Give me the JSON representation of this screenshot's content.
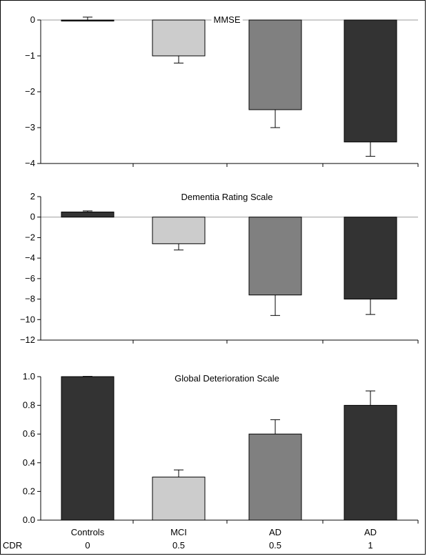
{
  "chart_data": [
    {
      "type": "bar",
      "title": "MMSE",
      "categories": [
        "Controls",
        "MCI",
        "AD",
        "AD"
      ],
      "values": [
        0,
        -1.0,
        -2.5,
        -3.4
      ],
      "error": [
        0.08,
        0.2,
        0.5,
        0.4
      ],
      "ylim": [
        -4,
        0
      ],
      "yticks": [
        0,
        -1,
        -2,
        -3,
        -4
      ],
      "ytick_labels": [
        "0",
        "−1",
        "−2",
        "−3",
        "−4"
      ],
      "baseline_line": true,
      "colors": [
        "#333333",
        "#cccccc",
        "#808080",
        "#333333"
      ]
    },
    {
      "type": "bar",
      "title": "Dementia Rating Scale",
      "categories": [
        "Controls",
        "MCI",
        "AD",
        "AD"
      ],
      "values": [
        0.5,
        -2.6,
        -7.6,
        -8.0
      ],
      "error": [
        0.1,
        0.6,
        2.0,
        1.5
      ],
      "ylim": [
        -12,
        2
      ],
      "yticks": [
        2,
        0,
        -2,
        -4,
        -6,
        -8,
        -10,
        -12
      ],
      "ytick_labels": [
        "2",
        "0",
        "−2",
        "−4",
        "−6",
        "−8",
        "−10",
        "−12"
      ],
      "baseline_line": true,
      "colors": [
        "#333333",
        "#cccccc",
        "#808080",
        "#333333"
      ]
    },
    {
      "type": "bar",
      "title": "Global Deterioration Scale",
      "categories": [
        "Controls",
        "MCI",
        "AD",
        "AD"
      ],
      "values": [
        1.0,
        0.3,
        0.6,
        0.8
      ],
      "error": [
        0.002,
        0.05,
        0.1,
        0.1
      ],
      "ylim": [
        0,
        1.0
      ],
      "yticks": [
        1.0,
        0.8,
        0.6,
        0.4,
        0.2,
        0.0
      ],
      "ytick_labels": [
        "1.0",
        "0.8",
        "0.6",
        "0.4",
        "0.2",
        "0.0"
      ],
      "baseline_line": false,
      "colors": [
        "#333333",
        "#cccccc",
        "#808080",
        "#333333"
      ]
    }
  ],
  "x_labels": {
    "groups": [
      "Controls",
      "MCI",
      "AD",
      "AD"
    ],
    "cdr_label": "CDR",
    "cdr_values": [
      "0",
      "0.5",
      "0.5",
      "1"
    ]
  }
}
